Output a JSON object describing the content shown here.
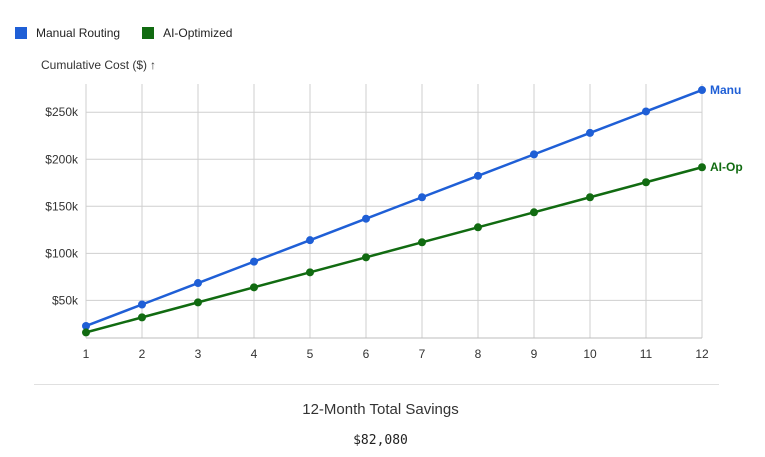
{
  "chart_data": {
    "type": "line",
    "x": [
      1,
      2,
      3,
      4,
      5,
      6,
      7,
      8,
      9,
      10,
      11,
      12
    ],
    "series": [
      {
        "name": "Manual Routing",
        "end_label": "Manu",
        "color": "#1f5fd6",
        "values": [
          22800,
          45600,
          68400,
          91200,
          114000,
          136800,
          159600,
          182400,
          205200,
          228000,
          250800,
          273600
        ]
      },
      {
        "name": "AI-Optimized",
        "end_label": "AI-Op",
        "color": "#116b11",
        "values": [
          15960,
          31920,
          47880,
          63840,
          79800,
          95760,
          111720,
          127680,
          143640,
          159600,
          175560,
          191520
        ]
      }
    ],
    "ylabel": "Cumulative Cost ($)",
    "ylabel_arrow": "↑",
    "y_ticks": [
      50000,
      100000,
      150000,
      200000,
      250000
    ],
    "y_tick_labels": [
      "$50k",
      "$100k",
      "$150k",
      "$200k",
      "$250k"
    ],
    "x_tick_labels": [
      "1",
      "2",
      "3",
      "4",
      "5",
      "6",
      "7",
      "8",
      "9",
      "10",
      "11",
      "12"
    ],
    "xlim": [
      1,
      12
    ],
    "ylim": [
      10000,
      280000
    ],
    "grid": true,
    "legend_position": "top-left"
  },
  "summary": {
    "title": "12-Month Total Savings",
    "value": "$82,080"
  }
}
